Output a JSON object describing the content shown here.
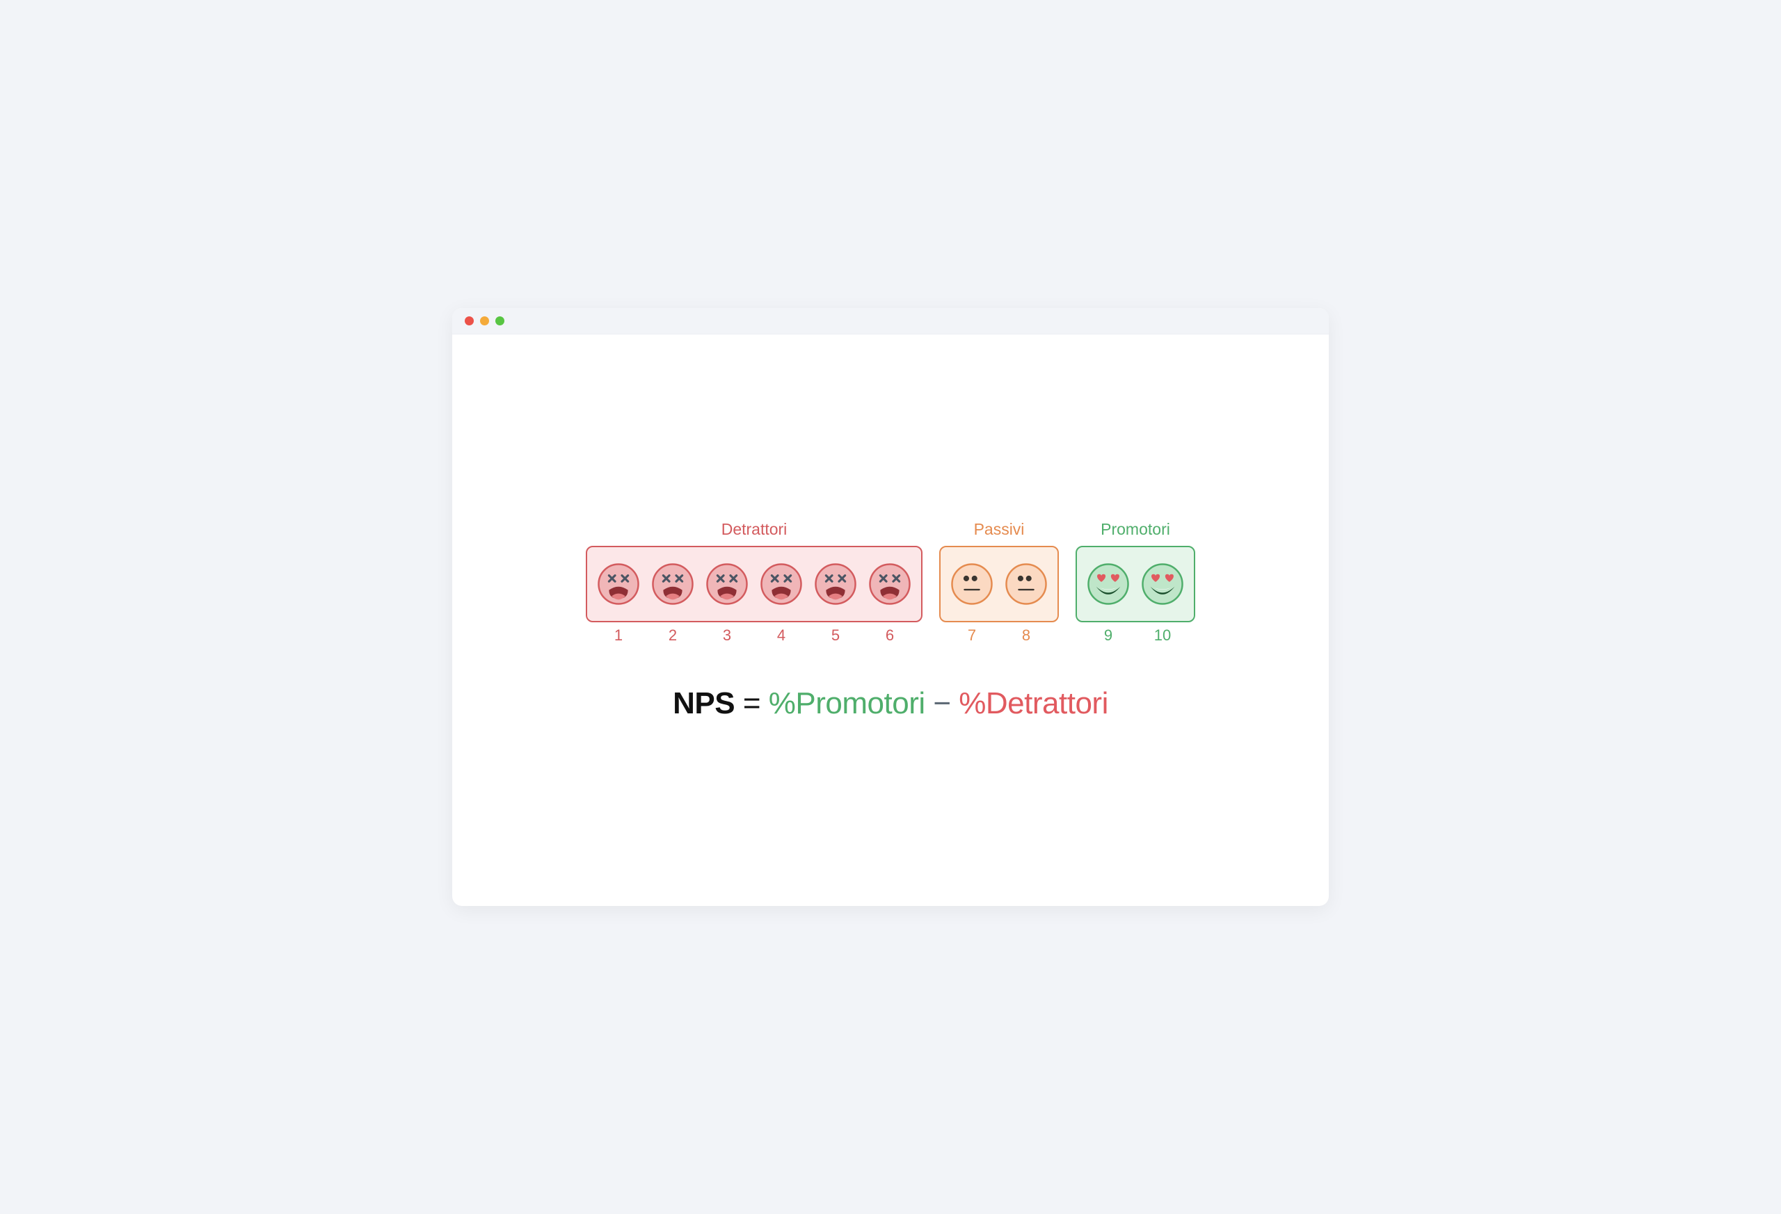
{
  "window": {
    "traffic_lights": [
      "#ec5249",
      "#f4aa3a",
      "#58c543"
    ],
    "titlebar_bg": "#f2f4f8",
    "content_bg": "#ffffff"
  },
  "groups": {
    "detractors": {
      "title": "Detrattori",
      "title_color": "#d35b5e",
      "box_border": "#d35b5e",
      "box_bg": "#fce7e8",
      "score_color": "#d35b5e",
      "scores": [
        "1",
        "2",
        "3",
        "4",
        "5",
        "6"
      ],
      "face": {
        "circle_fill": "#f0b6b8",
        "circle_stroke": "#d35b5e",
        "eye_stroke": "#4b5563",
        "mouth_fill": "#8f2f35",
        "tongue_fill": "#e57f82"
      }
    },
    "passives": {
      "title": "Passivi",
      "title_color": "#e58b4f",
      "box_border": "#e58b4f",
      "box_bg": "#fdeee3",
      "score_color": "#e58b4f",
      "scores": [
        "7",
        "8"
      ],
      "face": {
        "circle_fill": "#fbd9c2",
        "circle_stroke": "#e58b4f",
        "eye_fill": "#3a3530",
        "mouth_stroke": "#3a3530"
      }
    },
    "promoters": {
      "title": "Promotori",
      "title_color": "#4fae6b",
      "box_border": "#4fae6b",
      "box_bg": "#e6f5ea",
      "score_color": "#4fae6b",
      "scores": [
        "9",
        "10"
      ],
      "face": {
        "circle_fill": "#bfe6c9",
        "circle_stroke": "#4fae6b",
        "heart_fill": "#e15a5f",
        "mouth_fill": "#1a4f2c",
        "teeth_fill": "#ffffff",
        "tongue_fill": "#e15a5f"
      }
    }
  },
  "formula": {
    "lhs": "NPS",
    "eq": " = ",
    "promoters": "%Promotori",
    "minus": " − ",
    "detractors": "%Detrattori",
    "lhs_color": "#111111",
    "promoters_color": "#4fae6b",
    "minus_color": "#5f6b77",
    "detractors_color": "#e15a5f"
  },
  "typography": {
    "group_title_fontsize": 23,
    "score_fontsize": 22,
    "formula_fontsize": 44
  }
}
